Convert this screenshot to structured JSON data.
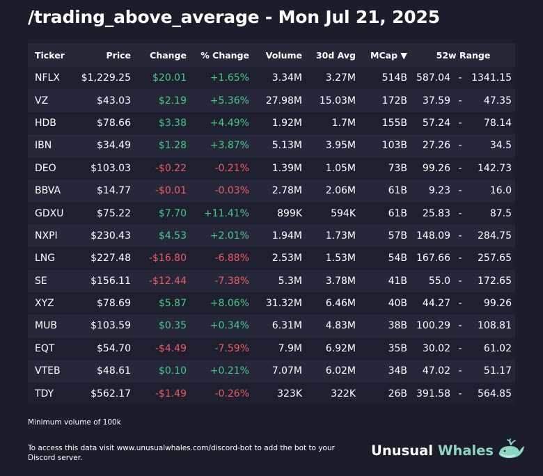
{
  "title": "/trading_above_average - Mon Jul 21, 2025",
  "headers": {
    "ticker": "Ticker",
    "price": "Price",
    "change": "Change",
    "pct_change": "% Change",
    "volume": "Volume",
    "avg30": "30d Avg",
    "mcap": "MCap ▼",
    "range": "52w Range"
  },
  "rows": [
    {
      "ticker": "NFLX",
      "price": "$1,229.25",
      "change": "$20.01",
      "pct": "+1.65%",
      "volume": "3.34M",
      "avg": "3.27M",
      "mcap": "514B",
      "lo": "587.04",
      "hi": "1341.15",
      "dir": "pos"
    },
    {
      "ticker": "VZ",
      "price": "$43.03",
      "change": "$2.19",
      "pct": "+5.36%",
      "volume": "27.98M",
      "avg": "15.03M",
      "mcap": "172B",
      "lo": "37.59",
      "hi": "47.35",
      "dir": "pos"
    },
    {
      "ticker": "HDB",
      "price": "$78.66",
      "change": "$3.38",
      "pct": "+4.49%",
      "volume": "1.92M",
      "avg": "1.7M",
      "mcap": "155B",
      "lo": "57.24",
      "hi": "78.14",
      "dir": "pos"
    },
    {
      "ticker": "IBN",
      "price": "$34.49",
      "change": "$1.28",
      "pct": "+3.87%",
      "volume": "5.13M",
      "avg": "3.95M",
      "mcap": "103B",
      "lo": "27.26",
      "hi": "34.5",
      "dir": "pos"
    },
    {
      "ticker": "DEO",
      "price": "$103.03",
      "change": "-$0.22",
      "pct": "-0.21%",
      "volume": "1.39M",
      "avg": "1.05M",
      "mcap": "73B",
      "lo": "99.26",
      "hi": "142.73",
      "dir": "neg"
    },
    {
      "ticker": "BBVA",
      "price": "$14.77",
      "change": "-$0.01",
      "pct": "-0.03%",
      "volume": "2.78M",
      "avg": "2.06M",
      "mcap": "61B",
      "lo": "9.23",
      "hi": "16.0",
      "dir": "neg"
    },
    {
      "ticker": "GDXU",
      "price": "$75.22",
      "change": "$7.70",
      "pct": "+11.41%",
      "volume": "899K",
      "avg": "594K",
      "mcap": "61B",
      "lo": "25.83",
      "hi": "87.5",
      "dir": "pos"
    },
    {
      "ticker": "NXPI",
      "price": "$230.43",
      "change": "$4.53",
      "pct": "+2.01%",
      "volume": "1.94M",
      "avg": "1.73M",
      "mcap": "57B",
      "lo": "148.09",
      "hi": "284.75",
      "dir": "pos"
    },
    {
      "ticker": "LNG",
      "price": "$227.48",
      "change": "-$16.80",
      "pct": "-6.88%",
      "volume": "2.53M",
      "avg": "1.53M",
      "mcap": "54B",
      "lo": "167.66",
      "hi": "257.65",
      "dir": "neg"
    },
    {
      "ticker": "SE",
      "price": "$156.11",
      "change": "-$12.44",
      "pct": "-7.38%",
      "volume": "5.3M",
      "avg": "3.78M",
      "mcap": "41B",
      "lo": "55.0",
      "hi": "172.65",
      "dir": "neg"
    },
    {
      "ticker": "XYZ",
      "price": "$78.69",
      "change": "$5.87",
      "pct": "+8.06%",
      "volume": "31.32M",
      "avg": "6.46M",
      "mcap": "40B",
      "lo": "44.27",
      "hi": "99.26",
      "dir": "pos"
    },
    {
      "ticker": "MUB",
      "price": "$103.59",
      "change": "$0.35",
      "pct": "+0.34%",
      "volume": "6.31M",
      "avg": "4.83M",
      "mcap": "38B",
      "lo": "100.29",
      "hi": "108.81",
      "dir": "pos"
    },
    {
      "ticker": "EQT",
      "price": "$54.70",
      "change": "-$4.49",
      "pct": "-7.59%",
      "volume": "7.9M",
      "avg": "6.92M",
      "mcap": "35B",
      "lo": "30.02",
      "hi": "61.02",
      "dir": "neg"
    },
    {
      "ticker": "VTEB",
      "price": "$48.61",
      "change": "$0.10",
      "pct": "+0.21%",
      "volume": "7.07M",
      "avg": "6.02M",
      "mcap": "34B",
      "lo": "47.02",
      "hi": "51.17",
      "dir": "pos"
    },
    {
      "ticker": "TDY",
      "price": "$562.17",
      "change": "-$1.49",
      "pct": "-0.26%",
      "volume": "323K",
      "avg": "322K",
      "mcap": "26B",
      "lo": "391.58",
      "hi": "564.85",
      "dir": "neg"
    }
  ],
  "range_separator": "-",
  "note": "Minimum volume of 100k",
  "footer": "To access this data visit www.unusualwhales.com/discord-bot to add the bot to your Discord server.",
  "brand": {
    "word1": "Unusual",
    "word2": "Whales",
    "icon": "whale-icon"
  },
  "colors": {
    "background": "#1b1d2a",
    "positive": "#45c98a",
    "negative": "#ef5a62",
    "brand_accent": "#8cd6c4"
  }
}
